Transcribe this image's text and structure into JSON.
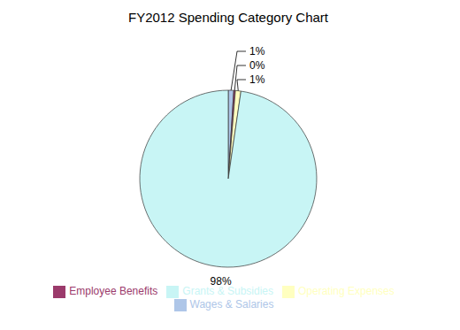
{
  "chart_data": {
    "type": "pie",
    "title": "FY2012 Spending Category Chart",
    "categories": [
      "Wages & Salaries",
      "Employee Benefits",
      "Operating Expenses",
      "Grants & Subsidies"
    ],
    "values": [
      1,
      0.3,
      1,
      97.7
    ],
    "value_labels": [
      "1%",
      "0%",
      "1%",
      "98%"
    ],
    "colors": [
      "#aec6e8",
      "#9b3a6b",
      "#ffffc0",
      "#c8f5f5"
    ],
    "data_labels": true,
    "legend": "bottom"
  }
}
